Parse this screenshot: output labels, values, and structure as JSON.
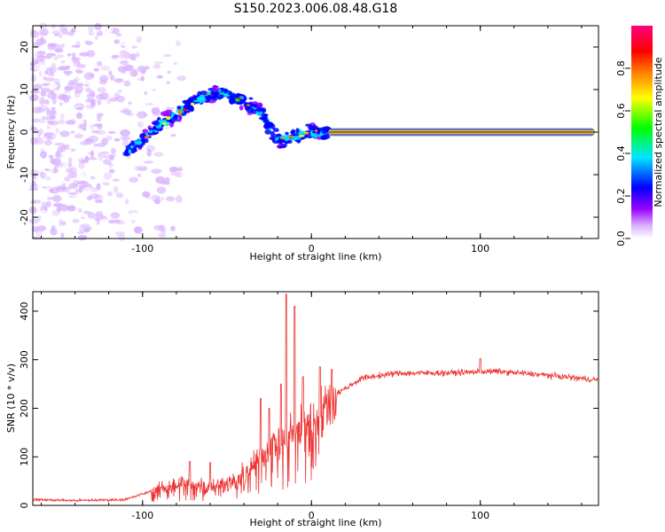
{
  "title": "S150.2023.006.08.48.G18",
  "chart_data": [
    {
      "type": "heatmap",
      "xlabel": "Height of straight line (km)",
      "ylabel": "Frequency (Hz)",
      "xlim": [
        -165,
        170
      ],
      "ylim": [
        -25,
        25
      ],
      "xticks": [
        -100,
        0,
        100
      ],
      "yticks": [
        -20,
        -10,
        0,
        10,
        20
      ],
      "colorbar": {
        "label": "Normalized spectral amplitude",
        "range": [
          0,
          1
        ],
        "ticks": [
          0.0,
          0.2,
          0.4,
          0.6,
          0.8
        ],
        "colors": [
          "#ffffff",
          "#d9b3ff",
          "#9900ff",
          "#0000ff",
          "#00e5ff",
          "#00ff00",
          "#ffff00",
          "#ff7f00",
          "#ff0000",
          "#ff007f"
        ]
      },
      "ridge": [
        {
          "x": -110,
          "y": -5
        },
        {
          "x": -100,
          "y": -2
        },
        {
          "x": -90,
          "y": 2
        },
        {
          "x": -80,
          "y": 4
        },
        {
          "x": -70,
          "y": 7
        },
        {
          "x": -60,
          "y": 9
        },
        {
          "x": -50,
          "y": 9
        },
        {
          "x": -40,
          "y": 7
        },
        {
          "x": -30,
          "y": 5
        },
        {
          "x": -25,
          "y": 1
        },
        {
          "x": -20,
          "y": -2
        },
        {
          "x": -10,
          "y": -1
        },
        {
          "x": 0,
          "y": 0
        },
        {
          "x": 10,
          "y": 0
        }
      ],
      "carrier_line": {
        "x_start": 10,
        "x_end": 170,
        "y": 0,
        "amplitude": 1.0
      }
    },
    {
      "type": "line",
      "xlabel": "Height of straight line (km)",
      "ylabel": "SNR (10 * v/v)",
      "xlim": [
        -165,
        170
      ],
      "ylim": [
        0,
        440
      ],
      "xticks": [
        -100,
        0,
        100
      ],
      "yticks": [
        0,
        100,
        200,
        300,
        400
      ],
      "color": "#ee3333",
      "profile": [
        {
          "x": -165,
          "y": 12
        },
        {
          "x": -140,
          "y": 10
        },
        {
          "x": -110,
          "y": 12
        },
        {
          "x": -90,
          "y": 35
        },
        {
          "x": -75,
          "y": 45
        },
        {
          "x": -60,
          "y": 40
        },
        {
          "x": -45,
          "y": 50
        },
        {
          "x": -35,
          "y": 80
        },
        {
          "x": -25,
          "y": 120
        },
        {
          "x": -15,
          "y": 150
        },
        {
          "x": -5,
          "y": 170
        },
        {
          "x": 5,
          "y": 190
        },
        {
          "x": 15,
          "y": 230
        },
        {
          "x": 30,
          "y": 262
        },
        {
          "x": 50,
          "y": 272
        },
        {
          "x": 80,
          "y": 273
        },
        {
          "x": 110,
          "y": 276
        },
        {
          "x": 140,
          "y": 268
        },
        {
          "x": 170,
          "y": 258
        }
      ],
      "spikes": [
        {
          "x": -72,
          "y": 90
        },
        {
          "x": -60,
          "y": 88
        },
        {
          "x": -30,
          "y": 220
        },
        {
          "x": -25,
          "y": 200
        },
        {
          "x": -18,
          "y": 250
        },
        {
          "x": -15,
          "y": 435
        },
        {
          "x": -10,
          "y": 410
        },
        {
          "x": -5,
          "y": 265
        },
        {
          "x": 5,
          "y": 285
        },
        {
          "x": 12,
          "y": 280
        },
        {
          "x": 100,
          "y": 302
        }
      ]
    }
  ]
}
